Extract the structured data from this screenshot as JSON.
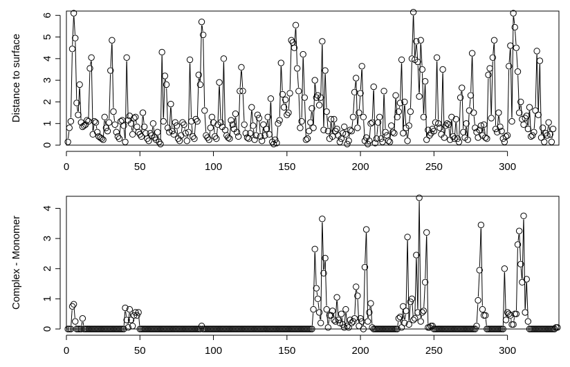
{
  "chart_data": [
    {
      "type": "line",
      "title": "",
      "xlabel": "",
      "ylabel": "Distance to surface",
      "xlim": [
        0,
        335
      ],
      "ylim": [
        0,
        6.2
      ],
      "xticks": [
        0,
        50,
        100,
        150,
        200,
        250,
        300
      ],
      "yticks": [
        0,
        1,
        2,
        3,
        4,
        5,
        6
      ],
      "grid": false,
      "series": [
        {
          "style": "points-and-lines",
          "x_start": 1,
          "values": [
            0.15,
            0.8,
            1.1,
            4.45,
            6.1,
            4.95,
            1.95,
            1.4,
            2.8,
            1.05,
            0.85,
            0.9,
            0.95,
            1.15,
            1.1,
            3.55,
            4.05,
            0.5,
            1.1,
            1.05,
            0.6,
            0.4,
            0.35,
            0.3,
            0.25,
            1.3,
            0.8,
            0.65,
            1.05,
            3.45,
            4.85,
            1.55,
            0.95,
            0.6,
            0.4,
            0.3,
            1.1,
            1.15,
            0.9,
            0.15,
            4.05,
            1.15,
            1.35,
            1.0,
            0.5,
            1.25,
            1.3,
            0.85,
            0.6,
            0.5,
            0.4,
            1.5,
            0.85,
            0.55,
            0.3,
            0.2,
            0.55,
            0.45,
            1.0,
            0.35,
            0.25,
            0.6,
            0.15,
            0.05,
            4.3,
            1.1,
            3.2,
            2.8,
            0.8,
            0.6,
            1.9,
            0.65,
            0.5,
            1.05,
            0.9,
            0.3,
            0.2,
            0.45,
            1.05,
            0.95,
            0.55,
            0.2,
            0.6,
            3.95,
            1.1,
            0.4,
            0.3,
            1.2,
            1.1,
            3.25,
            2.8,
            5.7,
            5.1,
            1.6,
            0.45,
            0.35,
            0.25,
            0.8,
            1.3,
            1.05,
            0.4,
            0.3,
            0.95,
            2.9,
            1.05,
            0.85,
            4.0,
            0.7,
            0.45,
            0.35,
            0.3,
            1.15,
            0.95,
            0.75,
            1.45,
            0.6,
            0.4,
            2.5,
            3.6,
            2.5,
            0.95,
            0.55,
            0.35,
            0.3,
            0.55,
            1.75,
            0.9,
            0.25,
            0.45,
            1.4,
            1.25,
            0.4,
            0.2,
            0.95,
            0.45,
            0.75,
            1.3,
            0.5,
            2.15,
            0.15,
            0.05,
            0.25,
            0.1,
            1.0,
            1.15,
            3.8,
            2.35,
            1.75,
            2.1,
            1.4,
            1.5,
            2.4,
            4.85,
            4.75,
            4.5,
            5.55,
            3.55,
            2.5,
            0.8,
            1.1,
            4.2,
            2.2,
            0.25,
            0.3,
            0.65,
            1.05,
            1.7,
            0.8,
            3.0,
            2.2,
            2.3,
            1.85,
            2.2,
            4.8,
            0.7,
            3.45,
            1.55,
            0.65,
            0.3,
            1.2,
            0.4,
            1.2,
            0.65,
            0.75,
            0.45,
            0.15,
            0.3,
            0.55,
            0.85,
            0.5,
            0.05,
            0.2,
            0.7,
            0.65,
            1.3,
            2.45,
            3.1,
            0.8,
            1.5,
            2.4,
            3.65,
            1.3,
            0.2,
            0.35,
            0.05,
            0.2,
            1.0,
            1.05,
            2.7,
            0.1,
            0.3,
            1.05,
            1.3,
            0.3,
            0.15,
            2.5,
            0.6,
            0.45,
            0.2,
            0.15,
            0.9,
            0.6,
            0.55,
            2.3,
            1.3,
            1.55,
            1.95,
            3.95,
            0.55,
            2.0,
            0.8,
            0.2,
            0.9,
            1.55,
            4.0,
            6.15,
            3.95,
            4.8,
            3.85,
            2.25,
            4.85,
            3.5,
            1.3,
            2.95,
            0.25,
            0.7,
            0.45,
            0.55,
            0.75,
            0.65,
            1.05,
            4.05,
            1.0,
            0.8,
            0.5,
            3.5,
            0.35,
            0.9,
            1.0,
            0.95,
            0.25,
            1.3,
            0.4,
            0.3,
            1.2,
            0.3,
            0.15,
            2.2,
            2.65,
            0.6,
            0.35,
            1.0,
            0.25,
            1.6,
            2.3,
            4.25,
            1.5,
            0.8,
            0.6,
            0.35,
            0.7,
            0.9,
            0.45,
            0.95,
            0.35,
            0.3,
            3.25,
            3.55,
            1.25,
            4.05,
            4.85,
            0.75,
            0.6,
            1.5,
            0.85,
            0.65,
            0.3,
            0.15,
            0.4,
            0.45,
            3.65,
            4.6,
            1.1,
            6.1,
            5.45,
            4.5,
            3.4,
            1.5,
            2.0,
            1.2,
            0.95,
            1.25,
            1.35,
            0.75,
            1.75,
            0.4,
            0.45,
            0.6,
            1.6,
            4.35,
            1.4,
            3.9,
            0.35,
            0.8,
            0.15,
            0.55,
            0.45,
            1.05,
            0.5,
            0.15,
            0.75
          ]
        }
      ]
    },
    {
      "type": "line",
      "title": "",
      "xlabel": "",
      "ylabel": "Complex - Monomer",
      "xlim": [
        0,
        335
      ],
      "ylim": [
        0,
        4.4
      ],
      "xticks": [
        0,
        50,
        100,
        150,
        200,
        250,
        300
      ],
      "yticks": [
        0,
        1,
        2,
        3,
        4
      ],
      "grid": false,
      "series": [
        {
          "style": "points-and-lines",
          "x_start": 1,
          "values": [
            0,
            0,
            0,
            0.75,
            0.82,
            0.25,
            0,
            0,
            0,
            0,
            0.35,
            0,
            0,
            0,
            0,
            0,
            0,
            0,
            0,
            0,
            0,
            0,
            0,
            0,
            0,
            0,
            0,
            0,
            0,
            0,
            0,
            0,
            0,
            0,
            0,
            0,
            0,
            0,
            0,
            0.7,
            0.3,
            0.05,
            0.65,
            0.3,
            0.1,
            0.45,
            0.55,
            0.45,
            0.55,
            0,
            0,
            0,
            0,
            0,
            0,
            0,
            0,
            0,
            0,
            0,
            0,
            0,
            0,
            0,
            0,
            0,
            0,
            0,
            0,
            0,
            0,
            0,
            0,
            0,
            0,
            0,
            0,
            0,
            0,
            0,
            0,
            0,
            0,
            0,
            0,
            0,
            0,
            0,
            0,
            0,
            0,
            0.1,
            0,
            0,
            0,
            0,
            0,
            0,
            0,
            0,
            0,
            0,
            0,
            0,
            0,
            0,
            0,
            0,
            0,
            0,
            0,
            0,
            0,
            0,
            0,
            0,
            0,
            0,
            0,
            0,
            0,
            0,
            0,
            0,
            0,
            0,
            0,
            0,
            0,
            0,
            0,
            0,
            0,
            0,
            0,
            0,
            0,
            0,
            0,
            0,
            0,
            0,
            0,
            0,
            0,
            0,
            0,
            0,
            0,
            0,
            0,
            0,
            0,
            0,
            0,
            0,
            0,
            0,
            0,
            0,
            0,
            0,
            0,
            0,
            0,
            0,
            0,
            0.65,
            2.65,
            1.35,
            1.0,
            0.55,
            0.2,
            3.65,
            1.85,
            2.35,
            0.65,
            0.05,
            0.45,
            0.45,
            0.6,
            0.3,
            0.25,
            1.05,
            0.3,
            0.2,
            0.5,
            0.15,
            0.05,
            0.65,
            0.1,
            0.05,
            0.3,
            0.2,
            0.25,
            0.35,
            1.4,
            1.1,
            0.1,
            0.35,
            0.25,
            0,
            2.05,
            3.3,
            0.25,
            0.55,
            0.85,
            0.05,
            0,
            0,
            0,
            0,
            0,
            0,
            0,
            0,
            0,
            0,
            0,
            0,
            0,
            0,
            0,
            0,
            0,
            0.35,
            0.4,
            0.05,
            0.75,
            0.2,
            0.6,
            3.05,
            0.15,
            0.9,
            1.0,
            0.3,
            0.35,
            2.45,
            0.55,
            4.35,
            0.25,
            0.55,
            0.6,
            1.55,
            3.2,
            0.05,
            0.05,
            0.1,
            0.1,
            0,
            0,
            0,
            0,
            0,
            0,
            0,
            0,
            0,
            0,
            0,
            0,
            0,
            0,
            0,
            0,
            0,
            0,
            0,
            0,
            0,
            0,
            0,
            0,
            0,
            0,
            0,
            0,
            0,
            0.1,
            0.95,
            1.95,
            3.45,
            0.65,
            0.45,
            0.45,
            0,
            0,
            0,
            0,
            0,
            0,
            0,
            0,
            0,
            0,
            0,
            0,
            2.0,
            0.3,
            0.55,
            0.5,
            0.45,
            0.15,
            0.15,
            0.5,
            0.5,
            2.8,
            3.25,
            2.15,
            1.55,
            3.75,
            0.55,
            1.65,
            0.25,
            0,
            0,
            0,
            0,
            0,
            0,
            0,
            0,
            0,
            0,
            0,
            0,
            0,
            0,
            0,
            0,
            0,
            0,
            0.05,
            0.05
          ]
        }
      ]
    }
  ]
}
